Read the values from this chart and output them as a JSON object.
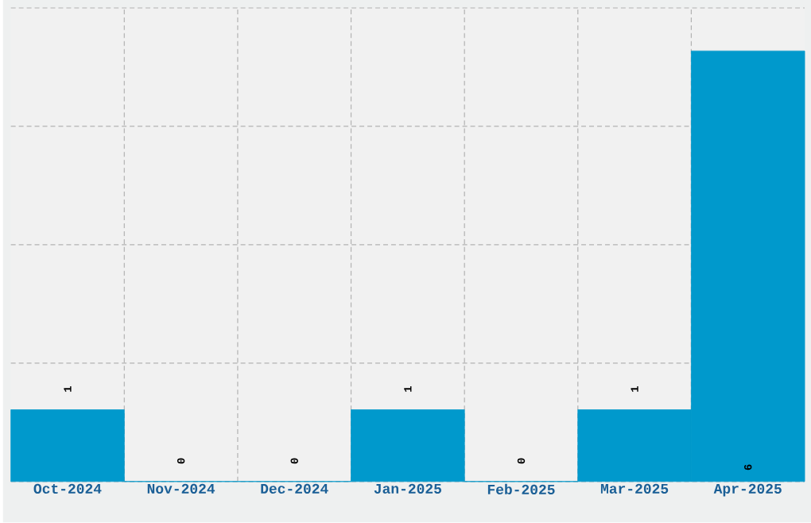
{
  "chart_data": {
    "type": "bar",
    "categories": [
      "Oct-2024",
      "Nov-2024",
      "Dec-2024",
      "Jan-2025",
      "Feb-2025",
      "Mar-2025",
      "Apr-2025"
    ],
    "values": [
      1,
      0,
      0,
      1,
      0,
      1,
      6
    ],
    "color": "#0099cc",
    "ylim": [
      0,
      6.6
    ],
    "yticks": [
      {
        "value": 0,
        "label": null
      },
      {
        "value": 1.65,
        "label": null
      },
      {
        "value": 3.3,
        "label": null
      },
      {
        "value": 4.95,
        "label": null
      },
      {
        "value": 6.6,
        "label": null
      }
    ],
    "grid": true,
    "data_labels": true,
    "tick_labels": "x"
  }
}
